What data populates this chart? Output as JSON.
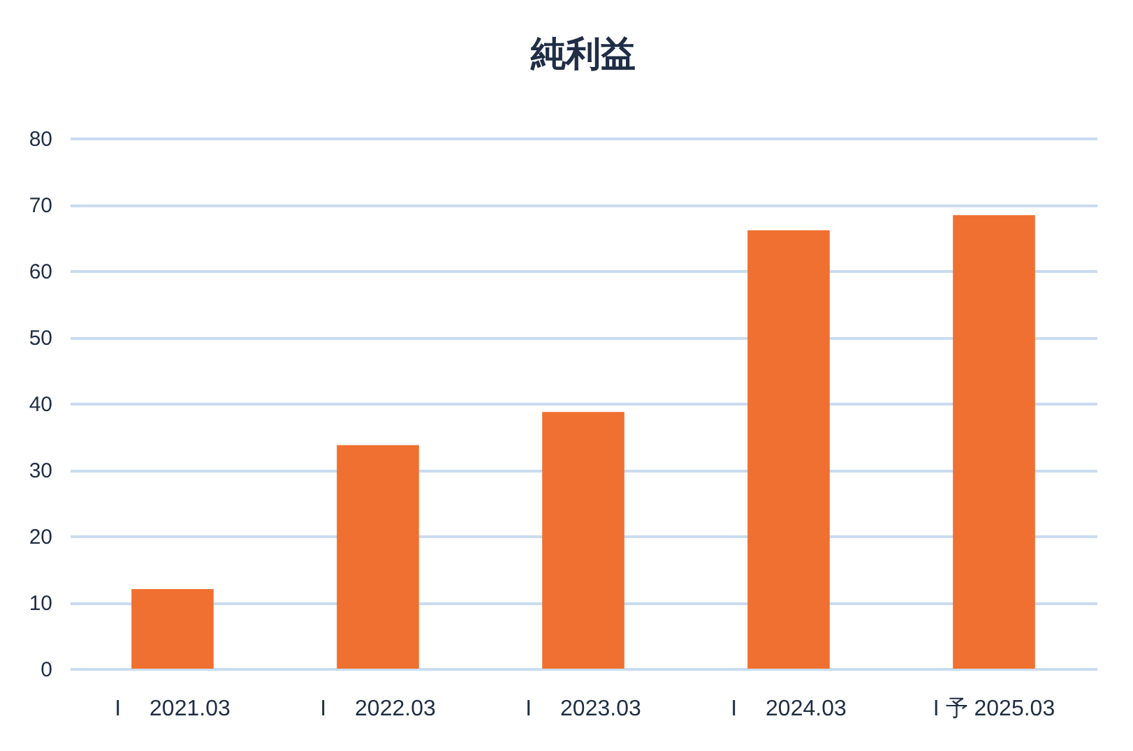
{
  "chart_data": {
    "type": "bar",
    "title": "純利益",
    "categories": [
      "I　 2021.03",
      "I　 2022.03",
      "I　 2023.03",
      "I　 2024.03",
      "I 予 2025.03"
    ],
    "values": [
      12.0,
      33.7,
      38.7,
      66.1,
      68.4
    ],
    "color": "#ef7030",
    "ylim": [
      0,
      80
    ],
    "yticks": [
      0,
      10,
      20,
      30,
      40,
      50,
      60,
      70,
      80
    ],
    "grid": "y"
  }
}
